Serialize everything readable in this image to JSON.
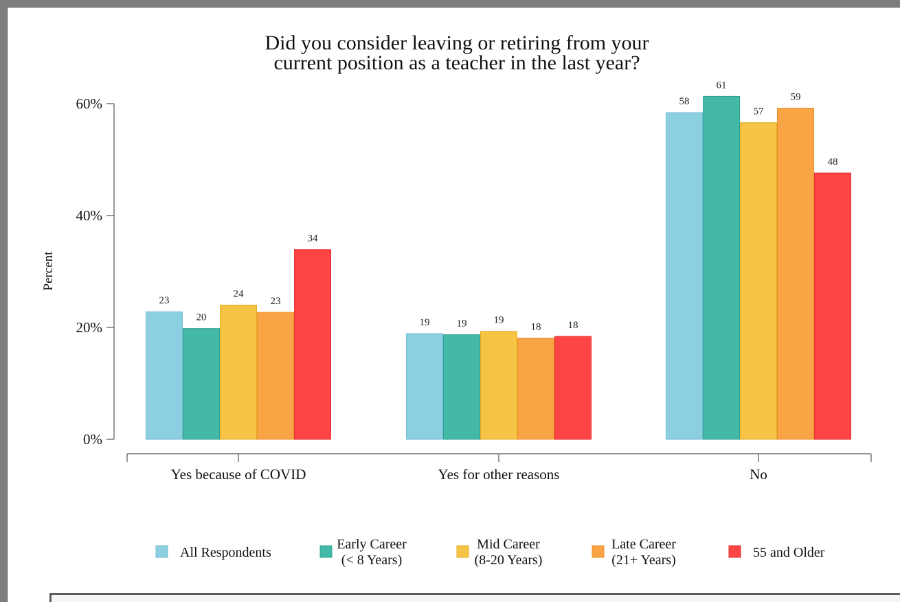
{
  "chart_data": {
    "type": "bar",
    "title": [
      "Did you consider leaving or retiring from your",
      "current position as a teacher in the last year?"
    ],
    "ylabel": "Percent",
    "xlabel": "",
    "ylim": [
      0,
      60
    ],
    "yticks": [
      {
        "value": 0,
        "label": "0%"
      },
      {
        "value": 20,
        "label": "20%"
      },
      {
        "value": 40,
        "label": "40%"
      },
      {
        "value": 60,
        "label": "60%"
      }
    ],
    "categories": [
      "Yes because of COVID",
      "Yes for other reasons",
      "No"
    ],
    "series": [
      {
        "name": [
          "All Respondents"
        ],
        "color": "#8ccfe1",
        "stroke": "#73bdd3",
        "values": [
          22.8,
          18.9,
          58.4
        ],
        "labels": [
          "23",
          "19",
          "58"
        ]
      },
      {
        "name": [
          "Early Career",
          "(< 8 Years)"
        ],
        "color": "#44b9a8",
        "stroke": "#2fa392",
        "values": [
          19.8,
          18.7,
          61.3
        ],
        "labels": [
          "20",
          "19",
          "61"
        ]
      },
      {
        "name": [
          "Mid Career",
          "(8-20 Years)"
        ],
        "color": "#f5c345",
        "stroke": "#e6ae24",
        "values": [
          24.0,
          19.3,
          56.6
        ],
        "labels": [
          "24",
          "19",
          "57"
        ]
      },
      {
        "name": [
          "Late Career",
          "(21+ Years)"
        ],
        "color": "#f9a545",
        "stroke": "#eb8e2a",
        "values": [
          22.7,
          18.1,
          59.2
        ],
        "labels": [
          "23",
          "18",
          "59"
        ]
      },
      {
        "name": [
          "55 and Older"
        ],
        "color": "#fe4546",
        "stroke": "#e63030",
        "values": [
          33.9,
          18.4,
          47.6
        ],
        "labels": [
          "34",
          "18",
          "48"
        ]
      }
    ],
    "grid": false,
    "legend_position": "bottom"
  }
}
